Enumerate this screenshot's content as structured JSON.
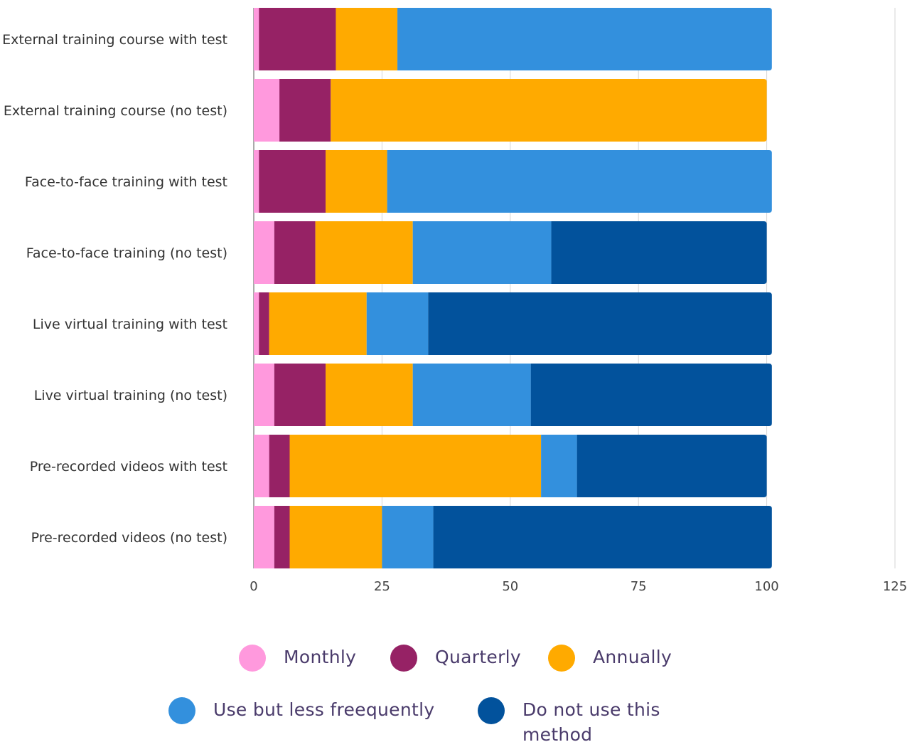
{
  "chart_data": {
    "type": "bar",
    "orientation": "horizontal",
    "stacked": true,
    "categories": [
      "External training course with test",
      "External training course (no test)",
      "Face-to-face training with test",
      "Face-to-face training (no test)",
      "Live virtual training with test",
      "Live virtual training (no test)",
      "Pre-recorded videos with test",
      "Pre-recorded videos (no test)"
    ],
    "series": [
      {
        "name": "Monthly",
        "color": "#ff99dd",
        "values": [
          1,
          5,
          1,
          4,
          1,
          4,
          3,
          4
        ]
      },
      {
        "name": "Quarterly",
        "color": "#962265",
        "values": [
          15,
          10,
          13,
          8,
          2,
          10,
          4,
          3
        ]
      },
      {
        "name": "Annually",
        "color": "#ffaa00",
        "values": [
          12,
          85,
          12,
          19,
          19,
          17,
          49,
          18
        ]
      },
      {
        "name": "Use but less freequently",
        "color": "#3390dd",
        "values": [
          73,
          0,
          75,
          27,
          12,
          23,
          7,
          10
        ]
      },
      {
        "name": "Do not use this method",
        "color": "#02529c",
        "values": [
          0,
          0,
          0,
          42,
          67,
          47,
          37,
          66
        ]
      }
    ],
    "xlim": [
      0,
      125
    ],
    "xticks": [
      "0",
      "25",
      "50",
      "75",
      "100",
      "125"
    ],
    "grid": true,
    "legend_position": "bottom",
    "legend": [
      "Monthly",
      "Quarterly",
      "Annually",
      "Use but less freequently",
      "Do not use this method"
    ]
  }
}
